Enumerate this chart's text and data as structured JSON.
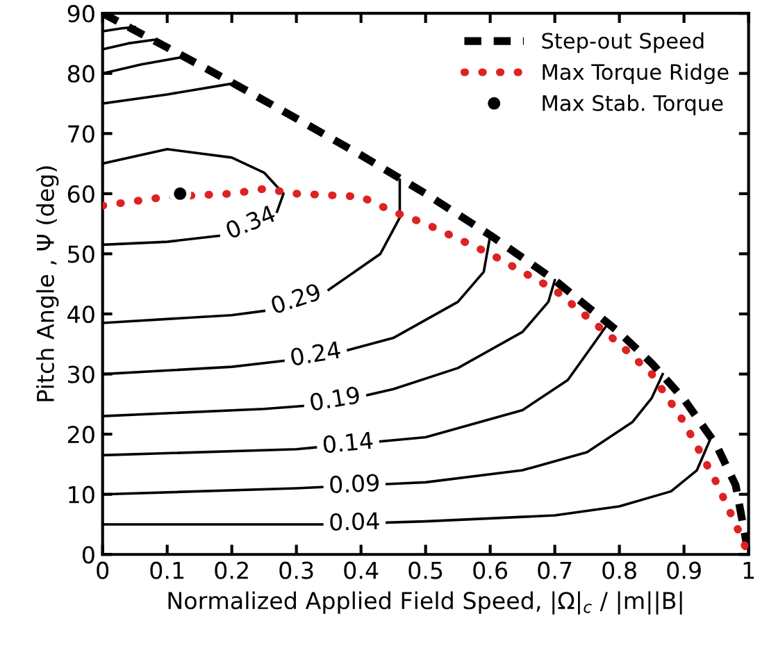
{
  "chart_data": {
    "type": "line",
    "xlabel": "Normalized Applied Field Speed, |Ω|$_{c}$ / |m||B|",
    "ylabel": "Pitch Angle , Ψ (deg)",
    "xlim": [
      0,
      1
    ],
    "ylim": [
      0,
      90
    ],
    "xticks": [
      0,
      0.1,
      0.2,
      0.3,
      0.4,
      0.5,
      0.6,
      0.7,
      0.8,
      0.9,
      1
    ],
    "yticks": [
      0,
      10,
      20,
      30,
      40,
      50,
      60,
      70,
      80,
      90
    ],
    "grid": false,
    "legend": "top right",
    "series": [
      {
        "name": "Step-out Speed",
        "color": "#000000",
        "line_style": "dashed",
        "marker": "none",
        "x": [
          0,
          0.1,
          0.2,
          0.3,
          0.4,
          0.5,
          0.6,
          0.7,
          0.8,
          0.85,
          0.9,
          0.95,
          0.98,
          1
        ],
        "values": [
          90,
          84.3,
          78.5,
          72.5,
          66.4,
          60,
          53.1,
          45.6,
          36.9,
          31.8,
          25.8,
          18.2,
          11.5,
          0
        ]
      },
      {
        "name": "Max Torque Ridge",
        "color": "#dd2222",
        "line_style": "dotted",
        "marker": "none",
        "x": [
          0,
          0.1,
          0.2,
          0.25,
          0.3,
          0.4,
          0.45,
          0.5,
          0.6,
          0.7,
          0.8,
          0.85,
          0.9,
          0.95,
          0.98,
          1
        ],
        "values": [
          58,
          59.5,
          60,
          60.8,
          60,
          59.5,
          57,
          55,
          50,
          44,
          35,
          30,
          22,
          12,
          5,
          0
        ]
      },
      {
        "name": "Max Stab. Torque",
        "type": "scatter",
        "color": "#000000",
        "marker": "circle",
        "x": [
          0.12
        ],
        "values": [
          60
        ]
      },
      {
        "name": "0.04",
        "color": "#000000",
        "line_style": "solid",
        "marker": "none",
        "x": [
          0,
          0.3,
          0.34,
          0.39,
          0.44,
          0.5,
          0.7,
          0.8,
          0.88,
          0.92,
          0.94
        ],
        "values": [
          5,
          5,
          5,
          null,
          5.3,
          5.5,
          6.5,
          8,
          10.5,
          14,
          19
        ]
      },
      {
        "name": "0.09",
        "color": "#000000",
        "line_style": "solid",
        "marker": "none",
        "x": [
          0,
          0.3,
          0.34,
          0.39,
          0.44,
          0.5,
          0.65,
          0.75,
          0.82,
          0.85,
          0.867
        ],
        "values": [
          10,
          11,
          11.2,
          null,
          11.7,
          12,
          14,
          17,
          22,
          26,
          30
        ]
      },
      {
        "name": "0.14",
        "color": "#000000",
        "line_style": "solid",
        "marker": "none",
        "x": [
          0,
          0.3,
          0.33,
          0.38,
          0.43,
          0.5,
          0.65,
          0.72,
          0.76,
          0.783
        ],
        "values": [
          16.5,
          17.5,
          17.8,
          null,
          18.8,
          19.5,
          24,
          29,
          35,
          38.5
        ]
      },
      {
        "name": "0.19",
        "color": "#000000",
        "line_style": "solid",
        "marker": "none",
        "x": [
          0,
          0.25,
          0.31,
          0.36,
          0.41,
          0.45,
          0.55,
          0.65,
          0.69,
          0.7
        ],
        "values": [
          23,
          24.2,
          24.7,
          null,
          26.5,
          27.5,
          31,
          37,
          42,
          45.6
        ]
      },
      {
        "name": "0.24",
        "color": "#000000",
        "line_style": "solid",
        "marker": "none",
        "x": [
          0,
          0.2,
          0.28,
          0.33,
          0.38,
          0.45,
          0.55,
          0.59,
          0.6
        ],
        "values": [
          30,
          31.2,
          32.2,
          null,
          34,
          36,
          42,
          47,
          53
        ]
      },
      {
        "name": "0.29",
        "color": "#000000",
        "line_style": "solid",
        "marker": "none",
        "x": [
          0,
          0.2,
          0.25,
          0.3,
          0.35,
          0.43,
          0.46,
          0.46
        ],
        "values": [
          38.5,
          39.8,
          40.5,
          null,
          44,
          50,
          56,
          62.3
        ]
      },
      {
        "name": "0.34",
        "color": "#000000",
        "line_style": "solid",
        "marker": "none",
        "x": [
          0,
          0.1,
          0.18,
          0.23,
          0.27,
          0.28,
          0.25,
          0.2,
          0.1,
          0
        ],
        "values": [
          51.5,
          52,
          53,
          null,
          57,
          60,
          63.5,
          66,
          67.4,
          65
        ]
      },
      {
        "color": "#000000",
        "line_style": "solid",
        "marker": "none",
        "x": [
          0,
          0.1,
          0.2
        ],
        "values": [
          75,
          76.5,
          78.3
        ]
      },
      {
        "color": "#000000",
        "line_style": "solid",
        "marker": "none",
        "x": [
          0,
          0.06,
          0.118
        ],
        "values": [
          80,
          81.5,
          82.6
        ]
      },
      {
        "color": "#000000",
        "line_style": "solid",
        "marker": "none",
        "x": [
          0,
          0.04,
          0.08
        ],
        "values": [
          84,
          85,
          85.6
        ]
      },
      {
        "color": "#000000",
        "line_style": "solid",
        "marker": "none",
        "x": [
          0,
          0.03,
          0.05
        ],
        "values": [
          87,
          87.5,
          87.7
        ]
      }
    ]
  }
}
